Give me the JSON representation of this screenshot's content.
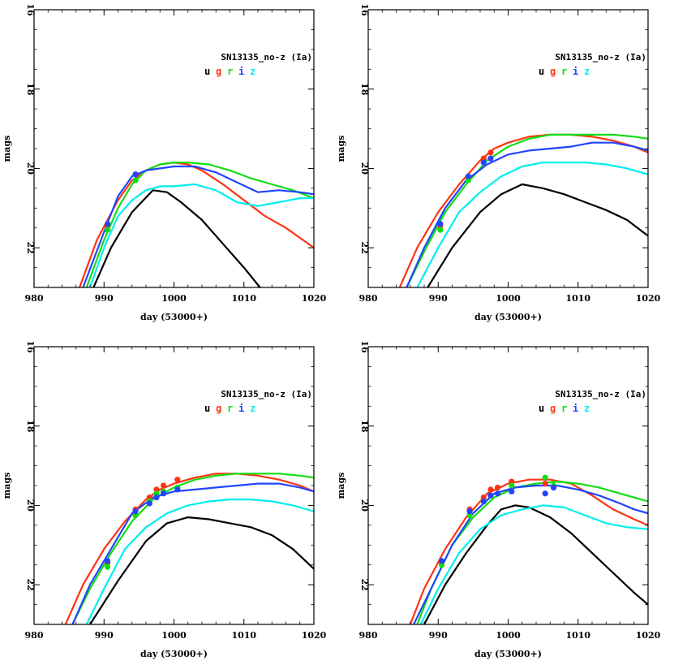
{
  "figure": {
    "description_text": ""
  },
  "colors": {
    "u": "#000000",
    "g": "#ff3311",
    "r": "#11dd11",
    "i": "#2244ff",
    "z": "#00eeee",
    "axis": "#000000"
  },
  "chart_data": [
    {
      "type": "line",
      "title": "SN13135_no-z (Ia)",
      "xlabel": "day (53000+)",
      "ylabel": "mags",
      "xlim": [
        980,
        1020
      ],
      "ylim": [
        16,
        23
      ],
      "xticks": [
        "980",
        "990",
        "1000",
        "1010",
        "1020"
      ],
      "yticks": [
        "16",
        "18",
        "20",
        "22"
      ],
      "legend": [
        "u",
        "g",
        "r",
        "i",
        "z"
      ],
      "series": [
        {
          "name": "u",
          "color_key": "u",
          "x": [
            988.5,
            991,
            994,
            997,
            999,
            1001,
            1004,
            1007,
            1010,
            1012.3
          ],
          "y": [
            23,
            22,
            21.1,
            20.55,
            20.6,
            20.85,
            21.3,
            21.9,
            22.5,
            23
          ]
        },
        {
          "name": "g",
          "color_key": "g",
          "x": [
            986.5,
            989,
            992,
            994,
            996,
            998,
            1000,
            1002,
            1004,
            1007,
            1010,
            1013,
            1016,
            1020
          ],
          "y": [
            23,
            21.8,
            20.8,
            20.3,
            20.05,
            19.9,
            19.85,
            19.9,
            20.05,
            20.4,
            20.8,
            21.2,
            21.5,
            22
          ]
        },
        {
          "name": "r",
          "color_key": "r",
          "x": [
            987.5,
            990,
            992,
            994,
            996,
            998,
            1000,
            1002,
            1005,
            1008,
            1011,
            1014,
            1017,
            1020
          ],
          "y": [
            23,
            21.8,
            21,
            20.4,
            20.05,
            19.9,
            19.85,
            19.85,
            19.9,
            20.05,
            20.25,
            20.4,
            20.55,
            20.75
          ]
        },
        {
          "name": "i",
          "color_key": "i",
          "x": [
            987,
            990,
            992,
            994,
            996,
            998,
            1000,
            1003,
            1006,
            1009,
            1012,
            1015,
            1018,
            1020
          ],
          "y": [
            23,
            21.6,
            20.7,
            20.2,
            20.05,
            20,
            19.95,
            19.95,
            20.1,
            20.35,
            20.6,
            20.55,
            20.6,
            20.65
          ]
        },
        {
          "name": "z",
          "color_key": "z",
          "x": [
            988,
            990,
            992,
            994,
            996,
            998,
            1000,
            1003,
            1006,
            1009,
            1012,
            1015,
            1018,
            1020
          ],
          "y": [
            23,
            22,
            21.2,
            20.8,
            20.55,
            20.45,
            20.45,
            20.4,
            20.55,
            20.85,
            20.95,
            20.85,
            20.75,
            20.75
          ]
        }
      ],
      "points": [
        {
          "band": "g",
          "x": 990.5,
          "y": 21.45
        },
        {
          "band": "r",
          "x": 990.5,
          "y": 21.55
        },
        {
          "band": "i",
          "x": 990.5,
          "y": 21.4
        },
        {
          "band": "g",
          "x": 994.5,
          "y": 20.15
        },
        {
          "band": "r",
          "x": 994.5,
          "y": 20.3
        },
        {
          "band": "i",
          "x": 994.5,
          "y": 20.15
        }
      ]
    },
    {
      "type": "line",
      "title": "SN13135_no-z (Ia)",
      "xlabel": "day (53000+)",
      "ylabel": "mags",
      "xlim": [
        980,
        1020
      ],
      "ylim": [
        16,
        23
      ],
      "xticks": [
        "980",
        "990",
        "1000",
        "1010",
        "1020"
      ],
      "yticks": [
        "16",
        "18",
        "20",
        "22"
      ],
      "legend": [
        "u",
        "g",
        "r",
        "i",
        "z"
      ],
      "series": [
        {
          "name": "u",
          "color_key": "u",
          "x": [
            988.5,
            992,
            996,
            999,
            1002,
            1005,
            1008,
            1011,
            1014,
            1017,
            1020
          ],
          "y": [
            23,
            22,
            21.1,
            20.65,
            20.4,
            20.5,
            20.65,
            20.85,
            21.05,
            21.3,
            21.7
          ]
        },
        {
          "name": "g",
          "color_key": "g",
          "x": [
            984.5,
            987,
            990,
            993,
            996,
            998,
            1000,
            1003,
            1006,
            1009,
            1012,
            1015,
            1018,
            1020
          ],
          "y": [
            23,
            22,
            21.1,
            20.4,
            19.8,
            19.5,
            19.35,
            19.2,
            19.15,
            19.15,
            19.2,
            19.3,
            19.45,
            19.6
          ]
        },
        {
          "name": "r",
          "color_key": "r",
          "x": [
            985.5,
            988,
            991,
            994,
            997,
            1000,
            1003,
            1006,
            1009,
            1012,
            1015,
            1018,
            1020
          ],
          "y": [
            23,
            22.1,
            21.1,
            20.4,
            19.8,
            19.45,
            19.25,
            19.15,
            19.15,
            19.15,
            19.15,
            19.2,
            19.25
          ]
        },
        {
          "name": "i",
          "color_key": "i",
          "x": [
            985.5,
            988,
            991,
            994,
            997,
            1000,
            1003,
            1006,
            1009,
            1012,
            1015,
            1018,
            1020
          ],
          "y": [
            23,
            22,
            21,
            20.3,
            19.9,
            19.65,
            19.55,
            19.5,
            19.45,
            19.35,
            19.35,
            19.45,
            19.55
          ]
        },
        {
          "name": "z",
          "color_key": "z",
          "x": [
            987,
            990,
            993,
            996,
            999,
            1002,
            1005,
            1008,
            1011,
            1014,
            1017,
            1020
          ],
          "y": [
            23,
            22,
            21.1,
            20.6,
            20.2,
            19.95,
            19.85,
            19.85,
            19.85,
            19.9,
            20,
            20.15
          ]
        }
      ],
      "points": [
        {
          "band": "g",
          "x": 990.3,
          "y": 21.45
        },
        {
          "band": "r",
          "x": 990.3,
          "y": 21.55
        },
        {
          "band": "i",
          "x": 990.3,
          "y": 21.4
        },
        {
          "band": "g",
          "x": 994.3,
          "y": 20.2
        },
        {
          "band": "r",
          "x": 994.3,
          "y": 20.3
        },
        {
          "band": "i",
          "x": 994.3,
          "y": 20.2
        },
        {
          "band": "g",
          "x": 996.5,
          "y": 19.75
        },
        {
          "band": "r",
          "x": 996.5,
          "y": 19.85
        },
        {
          "band": "i",
          "x": 996.5,
          "y": 19.85
        },
        {
          "band": "g",
          "x": 997.5,
          "y": 19.6
        },
        {
          "band": "r",
          "x": 997.5,
          "y": 19.75
        },
        {
          "band": "i",
          "x": 997.5,
          "y": 19.75
        }
      ]
    },
    {
      "type": "line",
      "title": "SN13135_no-z (Ia)",
      "xlabel": "day (53000+)",
      "ylabel": "mags",
      "xlim": [
        980,
        1020
      ],
      "ylim": [
        16,
        23
      ],
      "xticks": [
        "980",
        "990",
        "1000",
        "1010",
        "1020"
      ],
      "yticks": [
        "16",
        "18",
        "20",
        "22"
      ],
      "legend": [
        "u",
        "g",
        "r",
        "i",
        "z"
      ],
      "series": [
        {
          "name": "u",
          "color_key": "u",
          "x": [
            988,
            992,
            996,
            999,
            1002,
            1005,
            1008,
            1011,
            1014,
            1017,
            1020
          ],
          "y": [
            23,
            21.9,
            20.9,
            20.45,
            20.3,
            20.35,
            20.45,
            20.55,
            20.75,
            21.1,
            21.6
          ]
        },
        {
          "name": "g",
          "color_key": "g",
          "x": [
            984.5,
            987,
            990,
            993,
            996,
            998,
            1000,
            1003,
            1006,
            1009,
            1012,
            1015,
            1018,
            1020
          ],
          "y": [
            23,
            22,
            21.1,
            20.4,
            19.85,
            19.6,
            19.45,
            19.3,
            19.2,
            19.2,
            19.25,
            19.35,
            19.5,
            19.65
          ]
        },
        {
          "name": "r",
          "color_key": "r",
          "x": [
            985.5,
            988,
            991,
            994,
            997,
            1000,
            1003,
            1006,
            1009,
            1012,
            1015,
            1018,
            1020
          ],
          "y": [
            23,
            22.1,
            21.2,
            20.4,
            19.85,
            19.55,
            19.35,
            19.25,
            19.2,
            19.2,
            19.2,
            19.25,
            19.3
          ]
        },
        {
          "name": "i",
          "color_key": "i",
          "x": [
            985.5,
            988,
            991,
            994,
            997,
            1000,
            1003,
            1006,
            1009,
            1012,
            1015,
            1018,
            1020
          ],
          "y": [
            23,
            22,
            21.1,
            20.2,
            19.8,
            19.65,
            19.6,
            19.55,
            19.5,
            19.45,
            19.45,
            19.55,
            19.65
          ]
        },
        {
          "name": "z",
          "color_key": "z",
          "x": [
            987.5,
            990,
            993,
            996,
            999,
            1002,
            1005,
            1008,
            1011,
            1014,
            1017,
            1020
          ],
          "y": [
            23,
            22.1,
            21.1,
            20.55,
            20.2,
            20,
            19.9,
            19.85,
            19.85,
            19.9,
            20,
            20.15
          ]
        }
      ],
      "points": [
        {
          "band": "g",
          "x": 990.5,
          "y": 21.45
        },
        {
          "band": "r",
          "x": 990.5,
          "y": 21.55
        },
        {
          "band": "i",
          "x": 990.5,
          "y": 21.4
        },
        {
          "band": "g",
          "x": 994.5,
          "y": 20.1
        },
        {
          "band": "r",
          "x": 994.5,
          "y": 20.25
        },
        {
          "band": "i",
          "x": 994.5,
          "y": 20.15
        },
        {
          "band": "g",
          "x": 996.5,
          "y": 19.8
        },
        {
          "band": "r",
          "x": 996.5,
          "y": 19.9
        },
        {
          "band": "i",
          "x": 996.5,
          "y": 19.95
        },
        {
          "band": "g",
          "x": 997.5,
          "y": 19.6
        },
        {
          "band": "r",
          "x": 997.5,
          "y": 19.7
        },
        {
          "band": "i",
          "x": 997.5,
          "y": 19.8
        },
        {
          "band": "g",
          "x": 998.5,
          "y": 19.5
        },
        {
          "band": "r",
          "x": 998.5,
          "y": 19.65
        },
        {
          "band": "i",
          "x": 998.5,
          "y": 19.7
        },
        {
          "band": "g",
          "x": 1000.5,
          "y": 19.35
        },
        {
          "band": "r",
          "x": 1000.5,
          "y": 19.55
        },
        {
          "band": "i",
          "x": 1000.5,
          "y": 19.6
        }
      ]
    },
    {
      "type": "line",
      "title": "SN13135_no-z (Ia)",
      "xlabel": "day (53000+)",
      "ylabel": "mags",
      "xlim": [
        980,
        1020
      ],
      "ylim": [
        16,
        23
      ],
      "xticks": [
        "980",
        "990",
        "1000",
        "1010",
        "1020"
      ],
      "yticks": [
        "16",
        "18",
        "20",
        "22"
      ],
      "legend": [
        "u",
        "g",
        "r",
        "i",
        "z"
      ],
      "series": [
        {
          "name": "u",
          "color_key": "u",
          "x": [
            988,
            991,
            994,
            997,
            999,
            1001,
            1003,
            1006,
            1009,
            1012,
            1015,
            1018,
            1020
          ],
          "y": [
            23,
            22,
            21.2,
            20.5,
            20.1,
            20,
            20.05,
            20.3,
            20.7,
            21.2,
            21.7,
            22.2,
            22.5
          ]
        },
        {
          "name": "g",
          "color_key": "g",
          "x": [
            986,
            988,
            991,
            994,
            997,
            1000,
            1003,
            1006,
            1009,
            1012,
            1015,
            1018,
            1020
          ],
          "y": [
            23,
            22.1,
            21.1,
            20.3,
            19.7,
            19.45,
            19.35,
            19.35,
            19.45,
            19.75,
            20.1,
            20.35,
            20.5
          ]
        },
        {
          "name": "r",
          "color_key": "r",
          "x": [
            987,
            989,
            992,
            995,
            998,
            1001,
            1004,
            1007,
            1010,
            1013,
            1016,
            1018,
            1020
          ],
          "y": [
            23,
            22.1,
            21,
            20.3,
            19.8,
            19.55,
            19.45,
            19.4,
            19.45,
            19.55,
            19.7,
            19.8,
            19.9
          ]
        },
        {
          "name": "i",
          "color_key": "i",
          "x": [
            986.5,
            989,
            992,
            995,
            998,
            1001,
            1004,
            1007,
            1010,
            1013,
            1016,
            1018,
            1020
          ],
          "y": [
            23,
            22.1,
            21,
            20.2,
            19.7,
            19.55,
            19.5,
            19.5,
            19.6,
            19.75,
            19.95,
            20.1,
            20.2
          ]
        },
        {
          "name": "z",
          "color_key": "z",
          "x": [
            987.5,
            990,
            993,
            996,
            999,
            1002,
            1005,
            1008,
            1011,
            1014,
            1017,
            1020
          ],
          "y": [
            23,
            22.1,
            21.2,
            20.6,
            20.25,
            20.1,
            20,
            20.05,
            20.25,
            20.45,
            20.55,
            20.6
          ]
        }
      ],
      "points": [
        {
          "band": "g",
          "x": 990.5,
          "y": 21.45
        },
        {
          "band": "r",
          "x": 990.5,
          "y": 21.5
        },
        {
          "band": "i",
          "x": 990.5,
          "y": 21.4
        },
        {
          "band": "g",
          "x": 994.5,
          "y": 20.1
        },
        {
          "band": "r",
          "x": 994.5,
          "y": 20.25
        },
        {
          "band": "i",
          "x": 994.5,
          "y": 20.15
        },
        {
          "band": "g",
          "x": 996.5,
          "y": 19.8
        },
        {
          "band": "r",
          "x": 996.5,
          "y": 19.9
        },
        {
          "band": "i",
          "x": 996.5,
          "y": 19.9
        },
        {
          "band": "g",
          "x": 997.5,
          "y": 19.6
        },
        {
          "band": "r",
          "x": 997.5,
          "y": 19.75
        },
        {
          "band": "i",
          "x": 997.5,
          "y": 19.75
        },
        {
          "band": "g",
          "x": 998.5,
          "y": 19.55
        },
        {
          "band": "r",
          "x": 998.5,
          "y": 19.7
        },
        {
          "band": "i",
          "x": 998.5,
          "y": 19.7
        },
        {
          "band": "g",
          "x": 1000.5,
          "y": 19.4
        },
        {
          "band": "r",
          "x": 1000.5,
          "y": 19.5
        },
        {
          "band": "i",
          "x": 1000.5,
          "y": 19.65
        },
        {
          "band": "g",
          "x": 1005.3,
          "y": 19.45
        },
        {
          "band": "r",
          "x": 1005.3,
          "y": 19.3
        },
        {
          "band": "i",
          "x": 1005.3,
          "y": 19.7
        },
        {
          "band": "g",
          "x": 1006.5,
          "y": 19.55
        },
        {
          "band": "r",
          "x": 1006.5,
          "y": 19.5
        },
        {
          "band": "i",
          "x": 1006.5,
          "y": 19.55
        }
      ]
    }
  ]
}
